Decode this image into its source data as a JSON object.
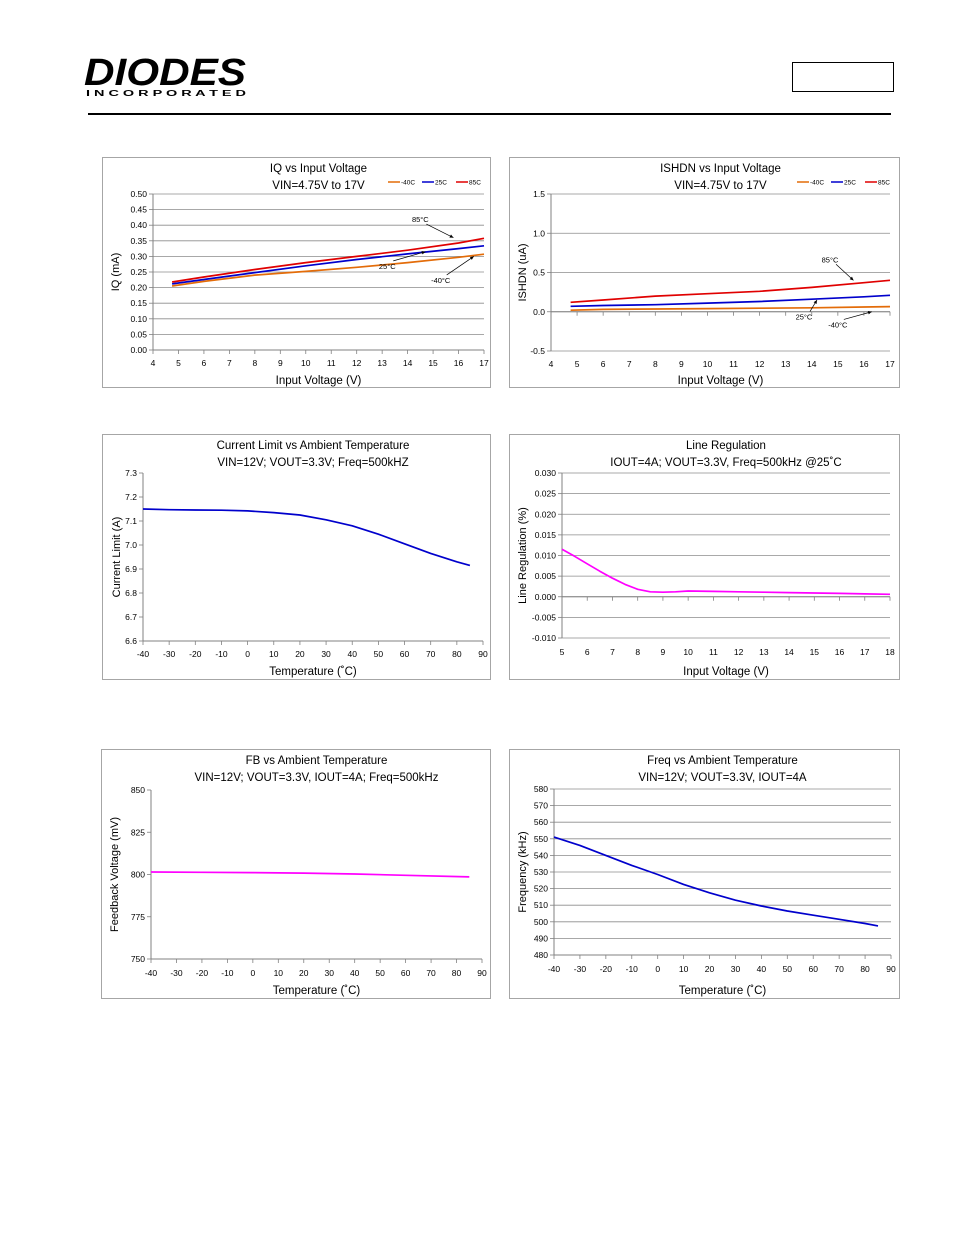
{
  "header": {
    "logo_text": "DIODES",
    "logo_subtext": "I N C O R P O R A T E D",
    "logo_color": "#1f3a93"
  },
  "chart_data": [
    {
      "type": "line",
      "title": "IQ vs Input Voltage",
      "subtitle": "VIN=4.75V to 17V",
      "xlabel": "Input Voltage (V)",
      "ylabel": "IQ (mA)",
      "xlim": [
        4,
        17
      ],
      "ylim": [
        0,
        0.5
      ],
      "xticks": [
        4,
        5,
        6,
        7,
        8,
        9,
        10,
        11,
        12,
        13,
        14,
        15,
        16,
        17
      ],
      "yticks": [
        0,
        0.05,
        0.1,
        0.15,
        0.2,
        0.25,
        0.3,
        0.35,
        0.4,
        0.45,
        0.5
      ],
      "ytick_labels": [
        "0.00",
        "0.05",
        "0.10",
        "0.15",
        "0.20",
        "0.25",
        "0.30",
        "0.35",
        "0.40",
        "0.45",
        "0.50"
      ],
      "grid": true,
      "legend_position": "top-right",
      "series": [
        {
          "name": "-40C",
          "color": "#e36c09",
          "x": [
            4.75,
            6,
            8,
            10,
            12,
            14,
            16,
            17
          ],
          "y": [
            0.205,
            0.22,
            0.24,
            0.252,
            0.265,
            0.28,
            0.297,
            0.307
          ]
        },
        {
          "name": "25C",
          "color": "#0000cc",
          "x": [
            4.75,
            6,
            8,
            10,
            12,
            14,
            16,
            17
          ],
          "y": [
            0.212,
            0.226,
            0.248,
            0.27,
            0.29,
            0.308,
            0.325,
            0.334
          ]
        },
        {
          "name": "85C",
          "color": "#e00000",
          "x": [
            4.75,
            6,
            8,
            10,
            12,
            14,
            16,
            17
          ],
          "y": [
            0.218,
            0.234,
            0.258,
            0.28,
            0.3,
            0.32,
            0.343,
            0.358
          ]
        }
      ],
      "annotations": [
        {
          "text": "85°C",
          "x": 14.5,
          "y": 0.41,
          "tx": 15.8,
          "ty": 0.36
        },
        {
          "text": "25°C",
          "x": 13.2,
          "y": 0.26,
          "tx": 14.7,
          "ty": 0.315
        },
        {
          "text": "-40°C",
          "x": 15.3,
          "y": 0.215,
          "tx": 16.6,
          "ty": 0.3
        }
      ]
    },
    {
      "type": "line",
      "title": "ISHDN vs Input Voltage",
      "subtitle": "VIN=4.75V to 17V",
      "xlabel": "Input Voltage (V)",
      "ylabel": "ISHDN (uA)",
      "xlim": [
        4,
        17
      ],
      "ylim": [
        -0.5,
        1.5
      ],
      "xticks": [
        4,
        5,
        6,
        7,
        8,
        9,
        10,
        11,
        12,
        13,
        14,
        15,
        16,
        17
      ],
      "yticks": [
        -0.5,
        0,
        0.5,
        1,
        1.5
      ],
      "ytick_labels": [
        "-0.5",
        "0.0",
        "0.5",
        "1.0",
        "1.5"
      ],
      "grid": true,
      "legend_position": "top-right",
      "series": [
        {
          "name": "-40C",
          "color": "#e36c09",
          "x": [
            4.75,
            6,
            8,
            10,
            12,
            14,
            16,
            17
          ],
          "y": [
            0.02,
            0.03,
            0.035,
            0.04,
            0.045,
            0.05,
            0.06,
            0.065
          ]
        },
        {
          "name": "25C",
          "color": "#0000cc",
          "x": [
            4.75,
            6,
            8,
            10,
            12,
            14,
            16,
            17
          ],
          "y": [
            0.07,
            0.08,
            0.09,
            0.11,
            0.13,
            0.16,
            0.19,
            0.21
          ]
        },
        {
          "name": "85C",
          "color": "#e00000",
          "x": [
            4.75,
            6,
            8,
            10,
            12,
            14,
            16,
            17
          ],
          "y": [
            0.12,
            0.15,
            0.2,
            0.23,
            0.26,
            0.31,
            0.37,
            0.4
          ]
        }
      ],
      "annotations": [
        {
          "text": "85°C",
          "x": 14.7,
          "y": 0.63,
          "tx": 15.6,
          "ty": 0.4
        },
        {
          "text": "25°C",
          "x": 13.7,
          "y": -0.1,
          "tx": 14.2,
          "ty": 0.15
        },
        {
          "text": "-40°C",
          "x": 15,
          "y": -0.2,
          "tx": 16.3,
          "ty": 0.0
        }
      ]
    },
    {
      "type": "line",
      "title": "Current Limit vs Ambient Temperature",
      "subtitle": "VIN=12V; VOUT=3.3V; Freq=500kHZ",
      "xlabel": "Temperature (˚C)",
      "ylabel": "Current Limit (A)",
      "xlim": [
        -40,
        90
      ],
      "ylim": [
        6.6,
        7.3
      ],
      "xticks": [
        -40,
        -30,
        -20,
        -10,
        0,
        10,
        20,
        30,
        40,
        50,
        60,
        70,
        80,
        90
      ],
      "yticks": [
        6.6,
        6.7,
        6.8,
        6.9,
        7.0,
        7.1,
        7.2,
        7.3
      ],
      "ytick_labels": [
        "6.6",
        "6.7",
        "6.8",
        "6.9",
        "7.0",
        "7.1",
        "7.2",
        "7.3"
      ],
      "grid": false,
      "series": [
        {
          "color": "#0000cc",
          "x": [
            -40,
            -30,
            -20,
            -10,
            0,
            10,
            20,
            30,
            40,
            50,
            60,
            70,
            80,
            85
          ],
          "y": [
            7.15,
            7.147,
            7.146,
            7.145,
            7.142,
            7.135,
            7.125,
            7.105,
            7.08,
            7.045,
            7.005,
            6.965,
            6.93,
            6.915
          ]
        }
      ]
    },
    {
      "type": "line",
      "title": "Line Regulation",
      "subtitle": "IOUT=4A; VOUT=3.3V, Freq=500kHz @25˚C",
      "xlabel": "Input Voltage (V)",
      "ylabel": "Line Regulation (%)",
      "xlim": [
        5,
        18
      ],
      "ylim": [
        -0.01,
        0.03
      ],
      "xticks": [
        5,
        6,
        7,
        8,
        9,
        10,
        11,
        12,
        13,
        14,
        15,
        16,
        17,
        18
      ],
      "yticks": [
        -0.01,
        -0.005,
        0,
        0.005,
        0.01,
        0.015,
        0.02,
        0.025,
        0.03
      ],
      "ytick_labels": [
        "-0.010",
        "-0.005",
        "0.000",
        "0.005",
        "0.010",
        "0.015",
        "0.020",
        "0.025",
        "0.030"
      ],
      "grid": true,
      "series": [
        {
          "color": "#ff00ff",
          "x": [
            5,
            5.5,
            6,
            6.5,
            7,
            7.5,
            8,
            8.5,
            9,
            9.5,
            10,
            11,
            12,
            13,
            14,
            15,
            16,
            17,
            18
          ],
          "y": [
            0.0115,
            0.0098,
            0.008,
            0.0062,
            0.0045,
            0.003,
            0.0018,
            0.0012,
            0.0011,
            0.0012,
            0.0014,
            0.0013,
            0.0012,
            0.0011,
            0.001,
            0.0009,
            0.0008,
            0.0007,
            0.0006
          ]
        }
      ]
    },
    {
      "type": "line",
      "title": "FB vs Ambient Temperature",
      "subtitle": "VIN=12V; VOUT=3.3V, IOUT=4A; Freq=500kHz",
      "xlabel": "Temperature (˚C)",
      "ylabel": "Feedback Voltage (mV)",
      "xlim": [
        -40,
        90
      ],
      "ylim": [
        750,
        850
      ],
      "xticks": [
        -40,
        -30,
        -20,
        -10,
        0,
        10,
        20,
        30,
        40,
        50,
        60,
        70,
        80,
        90
      ],
      "yticks": [
        750,
        775,
        800,
        825,
        850
      ],
      "ytick_labels": [
        "750",
        "775",
        "800",
        "825",
        "850"
      ],
      "grid": false,
      "series": [
        {
          "color": "#ff00ff",
          "x": [
            -40,
            -20,
            0,
            20,
            40,
            60,
            85
          ],
          "y": [
            801.5,
            801.3,
            801.1,
            800.8,
            800.3,
            799.5,
            798.6
          ]
        }
      ]
    },
    {
      "type": "line",
      "title": "Freq vs Ambient Temperature",
      "subtitle": "VIN=12V; VOUT=3.3V, IOUT=4A",
      "xlabel": "Temperature (˚C)",
      "ylabel": "Frequency (kHz)",
      "xlim": [
        -40,
        90
      ],
      "ylim": [
        480,
        580
      ],
      "xticks": [
        -40,
        -30,
        -20,
        -10,
        0,
        10,
        20,
        30,
        40,
        50,
        60,
        70,
        80,
        90
      ],
      "yticks": [
        480,
        490,
        500,
        510,
        520,
        530,
        540,
        550,
        560,
        570,
        580
      ],
      "ytick_labels": [
        "480",
        "490",
        "500",
        "510",
        "520",
        "530",
        "540",
        "550",
        "560",
        "570",
        "580"
      ],
      "grid": true,
      "series": [
        {
          "color": "#0000cc",
          "x": [
            -40,
            -30,
            -20,
            -10,
            0,
            10,
            20,
            30,
            40,
            50,
            60,
            70,
            80,
            85
          ],
          "y": [
            551,
            546,
            540,
            534,
            528.5,
            522.5,
            517.5,
            513,
            509.5,
            506.5,
            504,
            501.5,
            499,
            497.5
          ]
        }
      ]
    }
  ]
}
